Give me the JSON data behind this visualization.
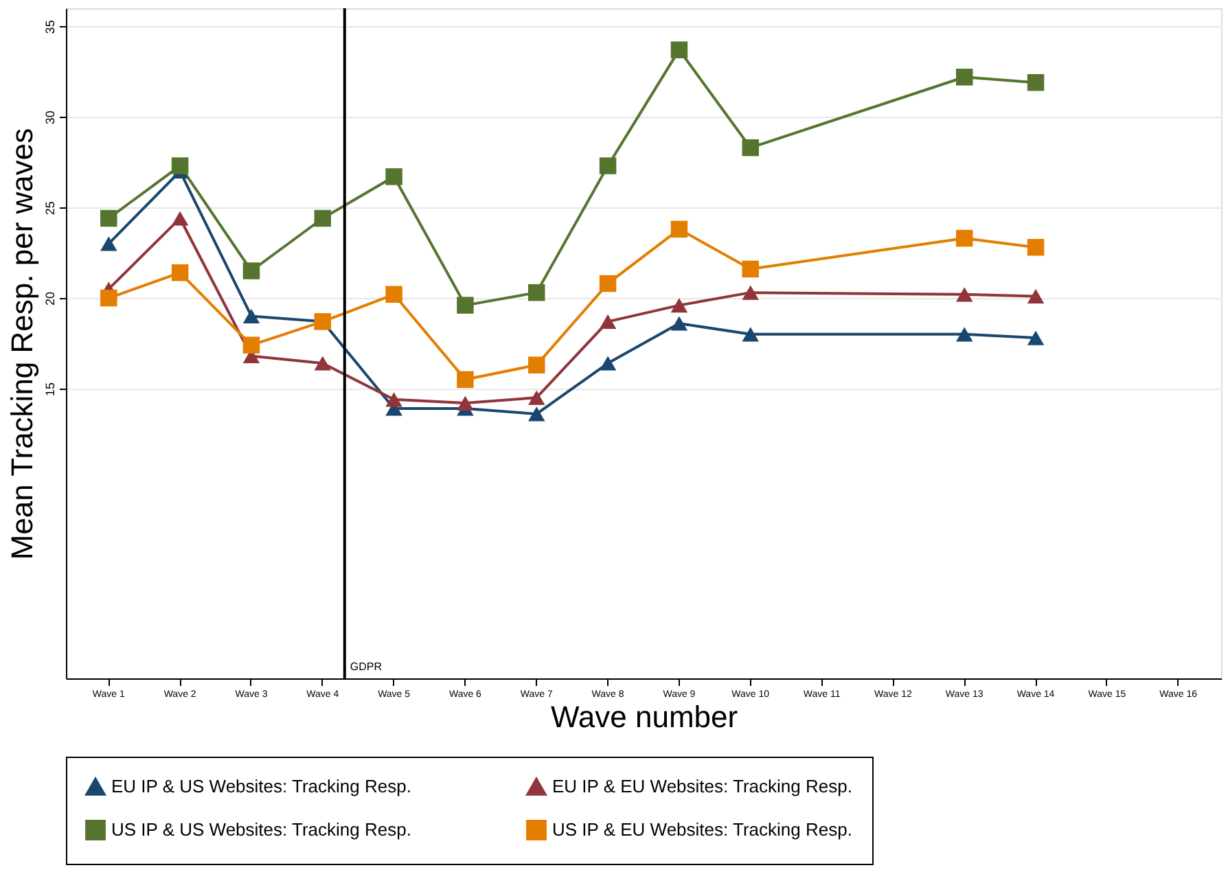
{
  "chart_data": {
    "type": "line",
    "xlabel": "Wave number",
    "ylabel": "Mean Tracking Resp. per waves",
    "categories": [
      "Wave 1",
      "Wave 2",
      "Wave 3",
      "Wave 4",
      "Wave 5",
      "Wave 6",
      "Wave 7",
      "Wave 8",
      "Wave 9",
      "Wave 10",
      "Wave 11",
      "Wave 12",
      "Wave 13",
      "Wave 14",
      "Wave 15",
      "Wave 16"
    ],
    "ylim": [
      -1,
      36
    ],
    "yticks": [
      15,
      20,
      25,
      30,
      35
    ],
    "grid": "y",
    "legend": "bottom",
    "line_style": "solid",
    "ref_lines": [
      {
        "axis": "x",
        "value": "Wave 4",
        "label": "GDPR",
        "color": "#000000"
      }
    ],
    "series": [
      {
        "name": "EU IP & US Websites: Tracking Resp.",
        "color": "#1a476f",
        "marker": "triangle",
        "values": [
          23.0,
          27.0,
          19.0,
          18.7,
          13.9,
          13.9,
          13.6,
          16.4,
          18.6,
          18.0,
          null,
          null,
          18.0,
          17.8,
          null,
          null
        ]
      },
      {
        "name": "EU IP & EU Websites: Tracking Resp.",
        "color": "#90353b",
        "marker": "triangle",
        "values": [
          20.5,
          24.4,
          16.8,
          16.4,
          14.4,
          14.2,
          14.5,
          18.7,
          19.6,
          20.3,
          null,
          null,
          20.2,
          20.1,
          null,
          null
        ]
      },
      {
        "name": "US IP & US Websites: Tracking Resp.",
        "color": "#55752f",
        "marker": "square",
        "values": [
          24.4,
          27.3,
          21.5,
          24.4,
          26.7,
          19.6,
          20.3,
          27.3,
          33.7,
          28.3,
          null,
          null,
          32.2,
          31.9,
          null,
          null
        ]
      },
      {
        "name": "US IP & EU Websites: Tracking Resp.",
        "color": "#e37e00",
        "marker": "square",
        "values": [
          20.0,
          21.4,
          17.4,
          18.7,
          20.2,
          15.5,
          16.3,
          20.8,
          23.8,
          21.6,
          null,
          null,
          23.3,
          22.8,
          null,
          null
        ]
      }
    ]
  }
}
